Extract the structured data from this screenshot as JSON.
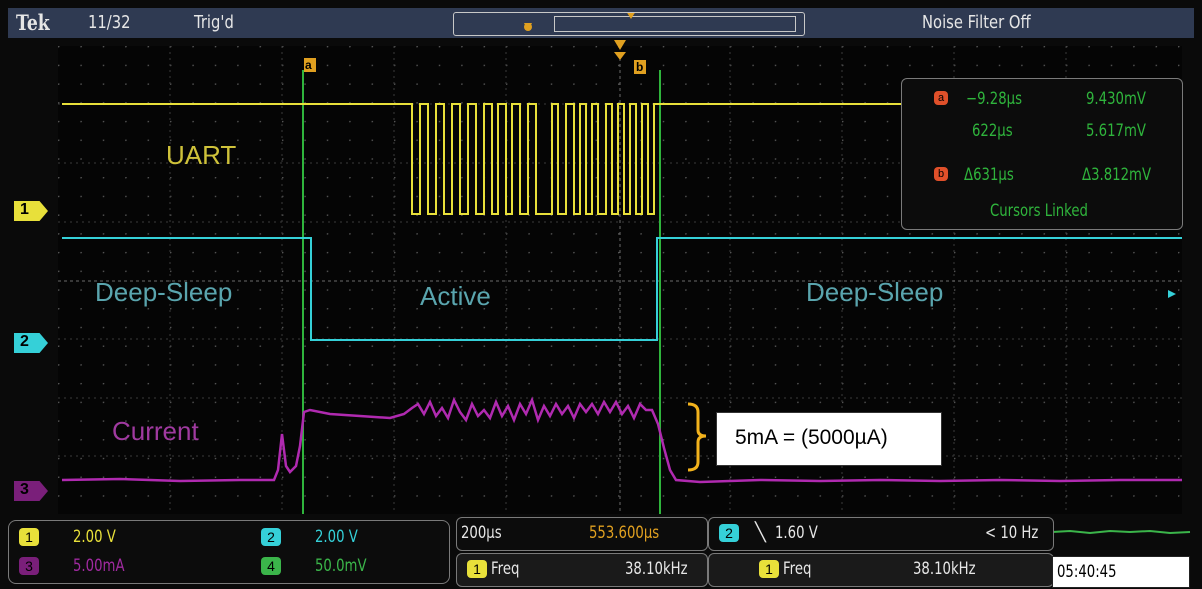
{
  "header": {
    "brand": "Tek",
    "acq_count": "11/32",
    "trigger_status": "Trig'd",
    "noise_filter": "Noise Filter Off"
  },
  "channel_markers": [
    "1",
    "2",
    "3"
  ],
  "trace_labels": {
    "uart": "UART",
    "deep_sleep_left": "Deep-Sleep",
    "active": "Active",
    "deep_sleep_right": "Deep-Sleep",
    "current": "Current"
  },
  "cursor_markers": {
    "a": "a",
    "b": "b"
  },
  "cursor_readout": {
    "a_time": "−9.28µs",
    "a_value": "9.430mV",
    "b_time": "622µs",
    "b_value": "5.617mV",
    "delta_time": "Δ631µs",
    "delta_value": "Δ3.812mV",
    "linked": "Cursors Linked"
  },
  "channels": [
    {
      "id": "1",
      "scale": "2.00 V",
      "color": "#e8e03a"
    },
    {
      "id": "2",
      "scale": "2.00 V",
      "color": "#35d0d8"
    },
    {
      "id": "3",
      "scale": "5.00mA",
      "color": "#b02ab0"
    },
    {
      "id": "4",
      "scale": "50.0mV",
      "color": "#3bb54a"
    }
  ],
  "horizontal": {
    "time_div": "200µs",
    "position": "553.600µs"
  },
  "trigger": {
    "source": "2",
    "edge_icon": "falling-edge-icon",
    "level": "1.60 V",
    "freq": "< 10 Hz"
  },
  "measurements": [
    {
      "source": "1",
      "name": "Freq",
      "value": "38.10kHz"
    },
    {
      "source": "1",
      "name": "Freq",
      "value": "38.10kHz"
    }
  ],
  "clock": "05:40:45",
  "annotation": "5mA = (5000µA)",
  "colors": {
    "ch1": "#e8e03a",
    "ch2": "#35d0d8",
    "ch3": "#b02ab0",
    "ch4": "#3bb54a",
    "cursor": "#2fb43c",
    "cursor_text": "#2fb43c",
    "marker_orange": "#e0a020"
  }
}
